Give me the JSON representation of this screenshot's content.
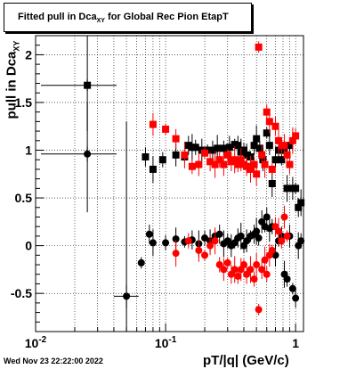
{
  "title": {
    "main": "Fitted pull in Dca",
    "subscript": "XY",
    "suffix": " for Global Rec Pion EtapT"
  },
  "axes": {
    "ylabel_main": "pull in Dca",
    "ylabel_sub": "XY",
    "xlabel": "pT/|q| (GeV/c)"
  },
  "timestamp": "Wed Nov 23 22:22:00 2022",
  "chart_data": {
    "type": "scatter",
    "title": "Fitted pull in Dca_XY for Global Rec Pion EtapT",
    "xlabel": "pT/|q| (GeV/c)",
    "ylabel": "pull in Dca_XY",
    "xscale": "log",
    "xlim": [
      0.01,
      1.15
    ],
    "ylim": [
      -0.9,
      2.2
    ],
    "grid": true,
    "x_ticks": [
      {
        "v": 0.01,
        "mant": "10",
        "exp": "-2"
      },
      {
        "v": 0.1,
        "mant": "10",
        "exp": "-1"
      },
      {
        "v": 1,
        "mant": "1",
        "exp": ""
      }
    ],
    "y_ticks": [
      -0.5,
      0,
      0.5,
      1,
      1.5,
      2
    ],
    "series": [
      {
        "marker": "square",
        "color": "#000000",
        "points": [
          [
            0.025,
            1.68
          ],
          [
            0.07,
            0.93
          ],
          [
            0.08,
            0.8
          ],
          [
            0.095,
            0.9
          ],
          [
            0.12,
            0.95
          ],
          [
            0.14,
            0.93
          ],
          [
            0.15,
            1.05
          ],
          [
            0.16,
            1.03
          ],
          [
            0.17,
            1.03
          ],
          [
            0.19,
            1.0
          ],
          [
            0.21,
            1.0
          ],
          [
            0.23,
            1.0
          ],
          [
            0.25,
            1.02
          ],
          [
            0.28,
            1.02
          ],
          [
            0.31,
            1.03
          ],
          [
            0.34,
            1.06
          ],
          [
            0.36,
            1.05
          ],
          [
            0.38,
            0.98
          ],
          [
            0.4,
            1.0
          ],
          [
            0.42,
            0.95
          ],
          [
            0.45,
            0.93
          ],
          [
            0.48,
            1.05
          ],
          [
            0.5,
            1.12
          ],
          [
            0.53,
            1.02
          ],
          [
            0.56,
            0.9
          ],
          [
            0.6,
            1.18
          ],
          [
            0.63,
            1.05
          ],
          [
            0.66,
            0.65
          ],
          [
            0.7,
            0.9
          ],
          [
            0.74,
            1.0
          ],
          [
            0.78,
            0.9
          ],
          [
            0.82,
            1.0
          ],
          [
            0.86,
            0.6
          ],
          [
            0.9,
            1.05
          ],
          [
            0.95,
            0.6
          ],
          [
            1.0,
            0.6
          ],
          [
            1.05,
            0.4
          ],
          [
            1.1,
            0.45
          ]
        ]
      },
      {
        "marker": "square",
        "color": "#ff0000",
        "points": [
          [
            0.08,
            1.27
          ],
          [
            0.1,
            1.22
          ],
          [
            0.12,
            1.12
          ],
          [
            0.14,
            0.95
          ],
          [
            0.16,
            0.83
          ],
          [
            0.18,
            0.85
          ],
          [
            0.2,
            0.97
          ],
          [
            0.22,
            0.88
          ],
          [
            0.24,
            0.85
          ],
          [
            0.26,
            0.9
          ],
          [
            0.28,
            0.85
          ],
          [
            0.3,
            0.95
          ],
          [
            0.32,
            0.88
          ],
          [
            0.34,
            0.9
          ],
          [
            0.36,
            0.85
          ],
          [
            0.38,
            0.9
          ],
          [
            0.4,
            0.85
          ],
          [
            0.42,
            0.83
          ],
          [
            0.45,
            0.8
          ],
          [
            0.48,
            0.85
          ],
          [
            0.5,
            0.75
          ],
          [
            0.52,
            2.08
          ],
          [
            0.55,
            0.95
          ],
          [
            0.58,
            0.85
          ],
          [
            0.6,
            1.4
          ],
          [
            0.63,
            1.3
          ],
          [
            0.66,
            0.8
          ],
          [
            0.7,
            1.25
          ],
          [
            0.74,
            1.1
          ],
          [
            0.78,
            1.05
          ],
          [
            0.82,
            1.05
          ],
          [
            0.86,
            0.95
          ],
          [
            0.9,
            0.85
          ],
          [
            0.95,
            1.1
          ],
          [
            1.0,
            1.15
          ]
        ]
      },
      {
        "marker": "circle",
        "color": "#000000",
        "points": [
          [
            0.025,
            0.96
          ],
          [
            0.05,
            -0.53
          ],
          [
            0.065,
            -0.18
          ],
          [
            0.075,
            0.12
          ],
          [
            0.08,
            0.03
          ],
          [
            0.1,
            0.03
          ],
          [
            0.12,
            0.07
          ],
          [
            0.14,
            0.04
          ],
          [
            0.16,
            0.06
          ],
          [
            0.18,
            0.02
          ],
          [
            0.2,
            0.08
          ],
          [
            0.22,
            0.05
          ],
          [
            0.24,
            0.1
          ],
          [
            0.26,
            0.12
          ],
          [
            0.28,
            0.02
          ],
          [
            0.3,
            0.05
          ],
          [
            0.32,
            0.0
          ],
          [
            0.34,
            0.03
          ],
          [
            0.36,
            0.08
          ],
          [
            0.38,
            0.1
          ],
          [
            0.4,
            0.0
          ],
          [
            0.42,
            0.05
          ],
          [
            0.45,
            0.1
          ],
          [
            0.48,
            0.12
          ],
          [
            0.5,
            0.15
          ],
          [
            0.52,
            0.08
          ],
          [
            0.55,
            0.25
          ],
          [
            0.58,
            0.2
          ],
          [
            0.6,
            0.3
          ],
          [
            0.63,
            0.18
          ],
          [
            0.66,
            0.2
          ],
          [
            0.7,
            -0.1
          ],
          [
            0.74,
            0.05
          ],
          [
            0.78,
            0.1
          ],
          [
            0.82,
            -0.3
          ],
          [
            0.86,
            -0.35
          ],
          [
            0.9,
            0.1
          ],
          [
            0.95,
            -0.45
          ],
          [
            1.0,
            -0.55
          ],
          [
            1.05,
            0.0
          ],
          [
            1.1,
            0.05
          ]
        ]
      },
      {
        "marker": "circle",
        "color": "#ff0000",
        "points": [
          [
            0.12,
            -0.08
          ],
          [
            0.15,
            0.05
          ],
          [
            0.18,
            -0.05
          ],
          [
            0.2,
            -0.1
          ],
          [
            0.22,
            0.0
          ],
          [
            0.24,
            0.05
          ],
          [
            0.26,
            -0.2
          ],
          [
            0.28,
            -0.25
          ],
          [
            0.3,
            -0.18
          ],
          [
            0.32,
            -0.3
          ],
          [
            0.34,
            -0.25
          ],
          [
            0.36,
            -0.32
          ],
          [
            0.38,
            -0.25
          ],
          [
            0.4,
            -0.2
          ],
          [
            0.42,
            -0.3
          ],
          [
            0.45,
            -0.25
          ],
          [
            0.48,
            -0.35
          ],
          [
            0.5,
            -0.2
          ],
          [
            0.52,
            -0.67
          ],
          [
            0.55,
            -0.25
          ],
          [
            0.58,
            -0.15
          ],
          [
            0.6,
            -0.3
          ],
          [
            0.63,
            -0.1
          ],
          [
            0.66,
            -0.05
          ],
          [
            0.7,
            0.2
          ],
          [
            0.74,
            0.15
          ],
          [
            0.78,
            0.05
          ],
          [
            0.82,
            0.3
          ],
          [
            0.86,
            0.1
          ]
        ]
      }
    ]
  }
}
